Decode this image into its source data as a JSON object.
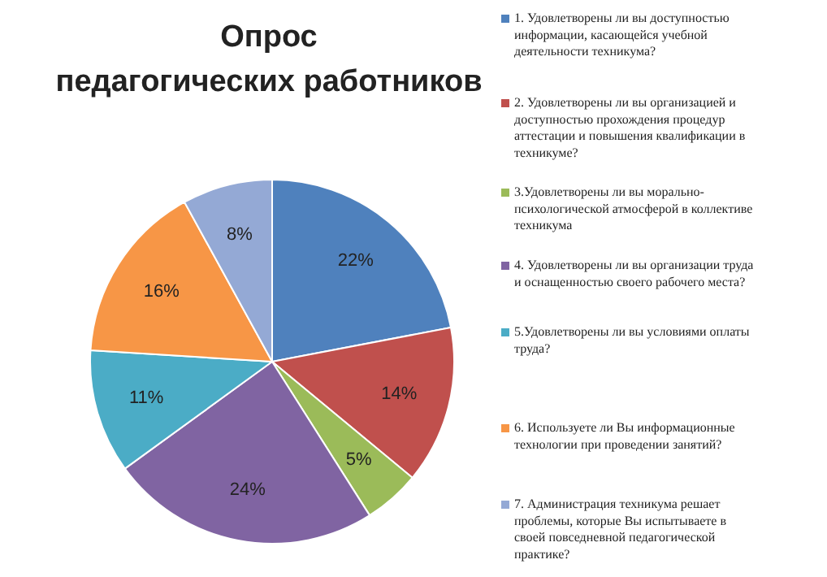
{
  "chart_data": {
    "type": "pie",
    "title": "Опрос педагогических работников",
    "categories": [
      "1. Удовлетворены ли вы доступностью информации, касающейся  учебной деятельности техникума?",
      "2. Удовлетворены ли вы организацией и доступностью прохождения  процедур аттестации и повышения  квалификации в техникуме?",
      "3.Удовлетворены ли вы морально-психологической атмосферой в коллективе техникума",
      "4. Удовлетворены ли вы организации труда и оснащенностью своего рабочего места?",
      "5.Удовлетворены ли вы условиями оплаты труда?",
      "6. Используете ли Вы  информационные технологии при проведении занятий?",
      "7. Администрация техникума  решает проблемы, которые Вы испытываете  в своей повседневной педагогической практике?"
    ],
    "values": [
      22,
      14,
      5,
      24,
      11,
      16,
      8
    ],
    "colors": [
      "#4f81bd",
      "#c0504d",
      "#9bbb59",
      "#8064a2",
      "#4bacc6",
      "#f79646",
      "#94a9d5"
    ],
    "value_labels": [
      "22%",
      "14%",
      "5%",
      "24%",
      "11%",
      "16%",
      "8%"
    ],
    "legend": "right"
  }
}
